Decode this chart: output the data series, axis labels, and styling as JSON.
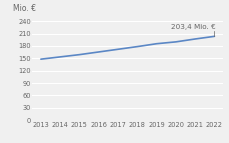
{
  "years": [
    2013,
    2014,
    2015,
    2016,
    2017,
    2018,
    2019,
    2020,
    2021,
    2022
  ],
  "values": [
    148.0,
    153.5,
    159.0,
    165.5,
    172.0,
    178.5,
    185.5,
    190.0,
    197.0,
    203.4
  ],
  "line_color": "#5b87c5",
  "line_width": 1.2,
  "ylabel": "Mio. €",
  "annotation": "203,4 Mio. €",
  "ylim": [
    0,
    250
  ],
  "yticks": [
    0,
    30,
    60,
    90,
    120,
    150,
    180,
    210,
    240
  ],
  "background_color": "#f0f0f0",
  "grid_color": "#ffffff",
  "ylabel_fontsize": 5.5,
  "tick_fontsize": 4.8,
  "annotation_fontsize": 5.2,
  "text_color": "#666666"
}
